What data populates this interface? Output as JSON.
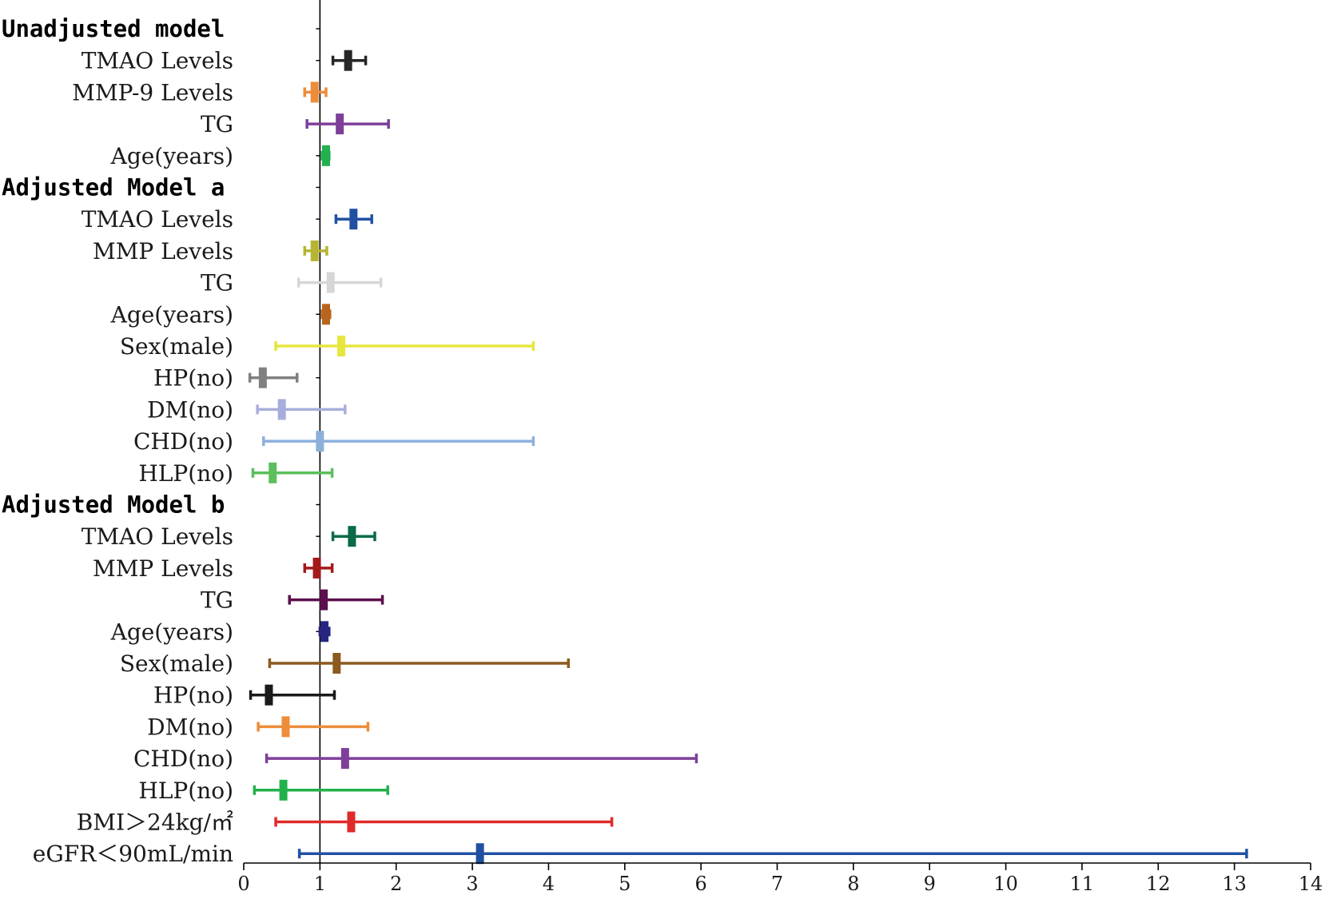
{
  "chart_data": {
    "type": "forest",
    "title": "",
    "xlabel": "",
    "ylabel": "",
    "xlim": [
      0,
      14
    ],
    "x_ticks": [
      "0",
      "1",
      "2",
      "3",
      "4",
      "5",
      "6",
      "7",
      "8",
      "9",
      "10",
      "11",
      "12",
      "13",
      "14"
    ],
    "reference_value": 1,
    "rows": [
      {
        "kind": "group",
        "label": "Unadjusted model"
      },
      {
        "kind": "item",
        "label": "TMAO Levels",
        "est": 1.37,
        "lo": 1.17,
        "hi": 1.6,
        "color": "#262626"
      },
      {
        "kind": "item",
        "label": "MMP-9 Levels",
        "est": 0.93,
        "lo": 0.8,
        "hi": 1.08,
        "color": "#ED8C3A"
      },
      {
        "kind": "item",
        "label": "TG",
        "est": 1.26,
        "lo": 0.83,
        "hi": 1.9,
        "color": "#7E3F98"
      },
      {
        "kind": "item",
        "label": "Age(years)",
        "est": 1.08,
        "lo": 1.03,
        "hi": 1.12,
        "color": "#22B14C"
      },
      {
        "kind": "group",
        "label": "Adjusted Model a"
      },
      {
        "kind": "item",
        "label": "TMAO Levels",
        "est": 1.44,
        "lo": 1.21,
        "hi": 1.68,
        "color": "#2150A3"
      },
      {
        "kind": "item",
        "label": "MMP Levels",
        "est": 0.93,
        "lo": 0.8,
        "hi": 1.09,
        "color": "#B5B533"
      },
      {
        "kind": "item",
        "label": "TG",
        "est": 1.14,
        "lo": 0.72,
        "hi": 1.8,
        "color": "#D6D6D6"
      },
      {
        "kind": "item",
        "label": "Age(years)",
        "est": 1.08,
        "lo": 1.03,
        "hi": 1.13,
        "color": "#B8651E"
      },
      {
        "kind": "item",
        "label": "Sex(male)",
        "est": 1.28,
        "lo": 0.42,
        "hi": 3.8,
        "color": "#E6E63C"
      },
      {
        "kind": "item",
        "label": "HP(no)",
        "est": 0.25,
        "lo": 0.08,
        "hi": 0.7,
        "color": "#808080"
      },
      {
        "kind": "item",
        "label": "DM(no)",
        "est": 0.5,
        "lo": 0.18,
        "hi": 1.33,
        "color": "#A8AEDB"
      },
      {
        "kind": "item",
        "label": "CHD(no)",
        "est": 1.0,
        "lo": 0.26,
        "hi": 3.8,
        "color": "#8DB0DB"
      },
      {
        "kind": "item",
        "label": "HLP(no)",
        "est": 0.38,
        "lo": 0.12,
        "hi": 1.16,
        "color": "#5CBF5C"
      },
      {
        "kind": "group",
        "label": "Adjusted Model b"
      },
      {
        "kind": "item",
        "label": "TMAO Levels",
        "est": 1.42,
        "lo": 1.17,
        "hi": 1.72,
        "color": "#0A6B47"
      },
      {
        "kind": "item",
        "label": "MMP Levels",
        "est": 0.96,
        "lo": 0.8,
        "hi": 1.16,
        "color": "#A31A1A"
      },
      {
        "kind": "item",
        "label": "TG",
        "est": 1.05,
        "lo": 0.6,
        "hi": 1.82,
        "color": "#5C0F4C"
      },
      {
        "kind": "item",
        "label": "Age(years)",
        "est": 1.06,
        "lo": 1.0,
        "hi": 1.12,
        "color": "#262680"
      },
      {
        "kind": "item",
        "label": "Sex(male)",
        "est": 1.22,
        "lo": 0.34,
        "hi": 4.26,
        "color": "#8C5A1F"
      },
      {
        "kind": "item",
        "label": "HP(no)",
        "est": 0.33,
        "lo": 0.09,
        "hi": 1.19,
        "color": "#1A1A1A"
      },
      {
        "kind": "item",
        "label": "DM(no)",
        "est": 0.55,
        "lo": 0.19,
        "hi": 1.63,
        "color": "#ED8C3A"
      },
      {
        "kind": "item",
        "label": "CHD(no)",
        "est": 1.33,
        "lo": 0.3,
        "hi": 5.94,
        "color": "#7E3F98"
      },
      {
        "kind": "item",
        "label": "HLP(no)",
        "est": 0.52,
        "lo": 0.14,
        "hi": 1.89,
        "color": "#22B14C"
      },
      {
        "kind": "item",
        "label": "BMI＞24kg/㎡",
        "est": 1.41,
        "lo": 0.42,
        "hi": 4.83,
        "color": "#E02A2A"
      },
      {
        "kind": "item",
        "label": "eGFR＜90mL/min",
        "est": 3.1,
        "lo": 0.73,
        "hi": 13.16,
        "color": "#2150A3"
      }
    ]
  }
}
